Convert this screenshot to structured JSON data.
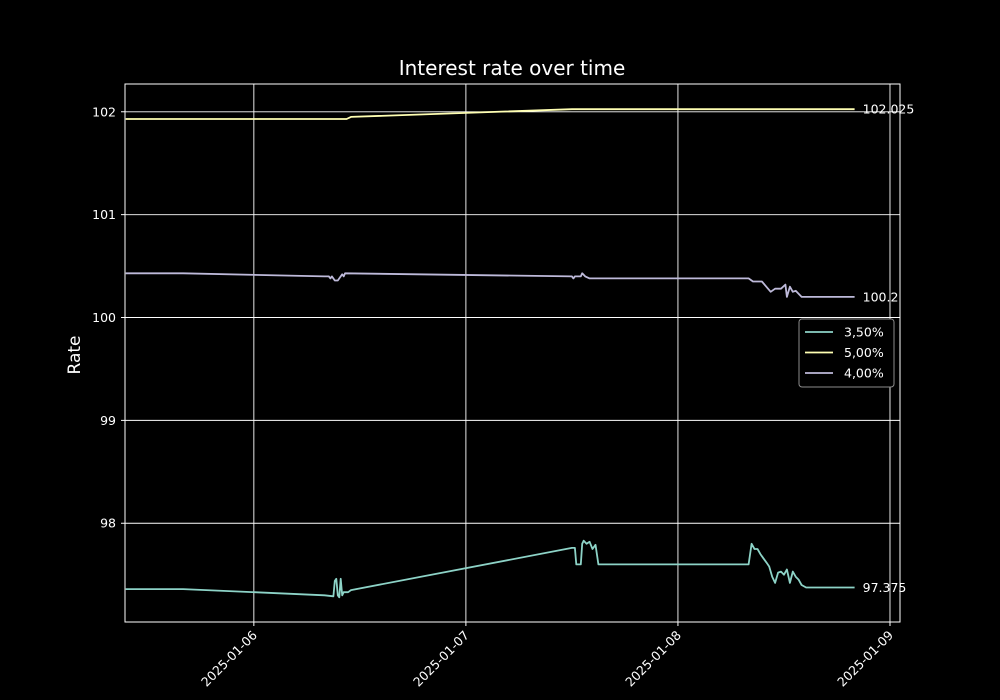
{
  "chart_data": {
    "type": "line",
    "title": "Interest rate over time",
    "xlabel": "",
    "ylabel": "Rate",
    "xlim": [
      "2025-01-05T09:25",
      "2025-01-09T01:08"
    ],
    "ylim": [
      97.04,
      102.27
    ],
    "x_ticks": [
      "2025-01-06",
      "2025-01-07",
      "2025-01-08",
      "2025-01-09"
    ],
    "y_ticks": [
      98,
      99,
      100,
      101,
      102
    ],
    "grid": true,
    "legend_position": "center-right",
    "end_labels": [
      "102.025",
      "100.2",
      "97.375"
    ],
    "series": [
      {
        "name": "3,50%",
        "color": "#8dd3c7",
        "end_label": "97.375",
        "points": [
          [
            "2025-01-05T09:30",
            97.36
          ],
          [
            "2025-01-05T16:00",
            97.36
          ],
          [
            "2025-01-06T08:00",
            97.3
          ],
          [
            "2025-01-06T09:00",
            97.29
          ],
          [
            "2025-01-06T09:10",
            97.44
          ],
          [
            "2025-01-06T09:20",
            97.46
          ],
          [
            "2025-01-06T09:30",
            97.3
          ],
          [
            "2025-01-06T09:40",
            97.28
          ],
          [
            "2025-01-06T09:50",
            97.46
          ],
          [
            "2025-01-06T10:00",
            97.3
          ],
          [
            "2025-01-06T10:10",
            97.33
          ],
          [
            "2025-01-06T10:40",
            97.33
          ],
          [
            "2025-01-06T11:00",
            97.35
          ],
          [
            "2025-01-07T12:00",
            97.76
          ],
          [
            "2025-01-07T12:20",
            97.76
          ],
          [
            "2025-01-07T12:30",
            97.6
          ],
          [
            "2025-01-07T13:00",
            97.6
          ],
          [
            "2025-01-07T13:10",
            97.8
          ],
          [
            "2025-01-07T13:20",
            97.83
          ],
          [
            "2025-01-07T13:40",
            97.8
          ],
          [
            "2025-01-07T14:00",
            97.82
          ],
          [
            "2025-01-07T14:20",
            97.75
          ],
          [
            "2025-01-07T14:40",
            97.79
          ],
          [
            "2025-01-07T15:00",
            97.6
          ],
          [
            "2025-01-08T08:00",
            97.6
          ],
          [
            "2025-01-08T08:20",
            97.8
          ],
          [
            "2025-01-08T08:40",
            97.75
          ],
          [
            "2025-01-08T09:00",
            97.75
          ],
          [
            "2025-01-08T09:20",
            97.7
          ],
          [
            "2025-01-08T09:40",
            97.66
          ],
          [
            "2025-01-08T10:00",
            97.62
          ],
          [
            "2025-01-08T10:20",
            97.58
          ],
          [
            "2025-01-08T10:40",
            97.48
          ],
          [
            "2025-01-08T11:00",
            97.42
          ],
          [
            "2025-01-08T11:20",
            97.52
          ],
          [
            "2025-01-08T11:40",
            97.53
          ],
          [
            "2025-01-08T12:00",
            97.5
          ],
          [
            "2025-01-08T12:20",
            97.55
          ],
          [
            "2025-01-08T12:40",
            97.42
          ],
          [
            "2025-01-08T13:00",
            97.53
          ],
          [
            "2025-01-08T13:20",
            97.48
          ],
          [
            "2025-01-08T13:40",
            97.45
          ],
          [
            "2025-01-08T14:00",
            97.4
          ],
          [
            "2025-01-08T14:30",
            97.375
          ],
          [
            "2025-01-08T20:00",
            97.375
          ]
        ]
      },
      {
        "name": "5,00%",
        "color": "#ffffb3",
        "end_label": "102.025",
        "points": [
          [
            "2025-01-05T09:30",
            101.93
          ],
          [
            "2025-01-06T10:30",
            101.93
          ],
          [
            "2025-01-06T11:00",
            101.95
          ],
          [
            "2025-01-07T12:00",
            102.025
          ],
          [
            "2025-01-08T20:00",
            102.025
          ]
        ]
      },
      {
        "name": "4,00%",
        "color": "#bebada",
        "end_label": "100.2",
        "points": [
          [
            "2025-01-05T09:30",
            100.43
          ],
          [
            "2025-01-05T16:00",
            100.43
          ],
          [
            "2025-01-06T08:00",
            100.4
          ],
          [
            "2025-01-06T08:30",
            100.4
          ],
          [
            "2025-01-06T08:40",
            100.38
          ],
          [
            "2025-01-06T08:50",
            100.4
          ],
          [
            "2025-01-06T09:10",
            100.36
          ],
          [
            "2025-01-06T09:30",
            100.36
          ],
          [
            "2025-01-06T09:50",
            100.4
          ],
          [
            "2025-01-06T10:00",
            100.42
          ],
          [
            "2025-01-06T10:10",
            100.4
          ],
          [
            "2025-01-06T10:20",
            100.43
          ],
          [
            "2025-01-07T12:00",
            100.4
          ],
          [
            "2025-01-07T12:10",
            100.38
          ],
          [
            "2025-01-07T12:20",
            100.4
          ],
          [
            "2025-01-07T13:00",
            100.4
          ],
          [
            "2025-01-07T13:10",
            100.43
          ],
          [
            "2025-01-07T13:30",
            100.4
          ],
          [
            "2025-01-07T14:00",
            100.38
          ],
          [
            "2025-01-08T08:00",
            100.38
          ],
          [
            "2025-01-08T08:30",
            100.35
          ],
          [
            "2025-01-08T09:30",
            100.35
          ],
          [
            "2025-01-08T10:00",
            100.3
          ],
          [
            "2025-01-08T10:30",
            100.25
          ],
          [
            "2025-01-08T11:00",
            100.28
          ],
          [
            "2025-01-08T11:40",
            100.28
          ],
          [
            "2025-01-08T12:10",
            100.32
          ],
          [
            "2025-01-08T12:20",
            100.2
          ],
          [
            "2025-01-08T12:40",
            100.3
          ],
          [
            "2025-01-08T13:00",
            100.25
          ],
          [
            "2025-01-08T13:20",
            100.26
          ],
          [
            "2025-01-08T14:00",
            100.2
          ],
          [
            "2025-01-08T20:00",
            100.2
          ]
        ]
      }
    ]
  }
}
